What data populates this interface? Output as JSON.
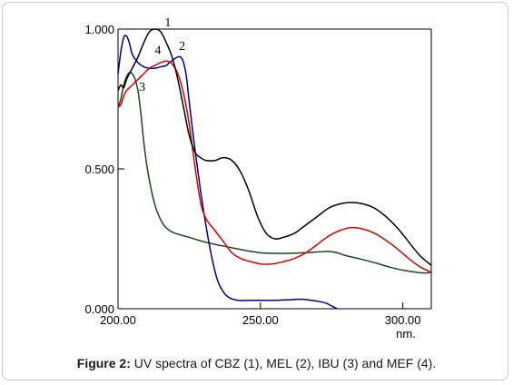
{
  "figure": {
    "label": "Figure 2:",
    "text": " UV spectra of CBZ (1), MEL (2), IBU (3) and MEF (4)."
  },
  "chart_data": {
    "type": "line",
    "title": "",
    "xlabel": "nm.",
    "ylabel": "",
    "xlim": [
      200,
      310
    ],
    "ylim": [
      0,
      1.0
    ],
    "x_ticks": [
      200,
      250,
      300
    ],
    "x_tick_labels": [
      "200.00",
      "250.00",
      "300.00"
    ],
    "y_ticks": [
      0,
      0.5,
      1.0
    ],
    "y_tick_labels": [
      "0.000",
      "0.500",
      "1.000"
    ],
    "grid": false,
    "legend": "none",
    "series": [
      {
        "label": "1",
        "color": "#000000",
        "points": [
          [
            200,
            0.78
          ],
          [
            201,
            0.8
          ],
          [
            202,
            0.79
          ],
          [
            203,
            0.82
          ],
          [
            205,
            0.86
          ],
          [
            207,
            0.9
          ],
          [
            209,
            0.95
          ],
          [
            211,
            0.99
          ],
          [
            213,
            1.0
          ],
          [
            215,
            0.99
          ],
          [
            217,
            0.95
          ],
          [
            219,
            0.9
          ],
          [
            221,
            0.82
          ],
          [
            223,
            0.72
          ],
          [
            225,
            0.62
          ],
          [
            227,
            0.56
          ],
          [
            229,
            0.54
          ],
          [
            231,
            0.53
          ],
          [
            234,
            0.53
          ],
          [
            237,
            0.54
          ],
          [
            240,
            0.53
          ],
          [
            243,
            0.49
          ],
          [
            246,
            0.42
          ],
          [
            249,
            0.33
          ],
          [
            252,
            0.27
          ],
          [
            255,
            0.25
          ],
          [
            258,
            0.255
          ],
          [
            262,
            0.27
          ],
          [
            266,
            0.3
          ],
          [
            270,
            0.33
          ],
          [
            274,
            0.36
          ],
          [
            278,
            0.375
          ],
          [
            282,
            0.38
          ],
          [
            286,
            0.375
          ],
          [
            290,
            0.36
          ],
          [
            294,
            0.33
          ],
          [
            298,
            0.29
          ],
          [
            302,
            0.24
          ],
          [
            306,
            0.19
          ],
          [
            310,
            0.155
          ]
        ]
      },
      {
        "label": "2",
        "color": "#00008b",
        "points": [
          [
            200,
            0.84
          ],
          [
            201,
            0.92
          ],
          [
            202,
            0.97
          ],
          [
            203,
            0.975
          ],
          [
            204,
            0.95
          ],
          [
            205,
            0.91
          ],
          [
            207,
            0.88
          ],
          [
            209,
            0.865
          ],
          [
            211,
            0.86
          ],
          [
            213,
            0.86
          ],
          [
            215,
            0.865
          ],
          [
            217,
            0.87
          ],
          [
            218,
            0.88
          ],
          [
            220,
            0.895
          ],
          [
            221,
            0.9
          ],
          [
            222,
            0.9
          ],
          [
            223,
            0.88
          ],
          [
            224,
            0.83
          ],
          [
            225,
            0.74
          ],
          [
            227,
            0.57
          ],
          [
            229,
            0.42
          ],
          [
            231,
            0.29
          ],
          [
            233,
            0.18
          ],
          [
            235,
            0.1
          ],
          [
            237,
            0.06
          ],
          [
            239,
            0.04
          ],
          [
            242,
            0.03
          ],
          [
            246,
            0.03
          ],
          [
            250,
            0.03
          ],
          [
            255,
            0.03
          ],
          [
            260,
            0.032
          ],
          [
            264,
            0.034
          ],
          [
            268,
            0.03
          ],
          [
            271,
            0.025
          ],
          [
            273,
            0.02
          ],
          [
            275,
            0.01
          ],
          [
            277,
            0.0
          ]
        ]
      },
      {
        "label": "3",
        "color": "#1e4620",
        "points": [
          [
            200,
            0.72
          ],
          [
            201,
            0.75
          ],
          [
            202,
            0.8
          ],
          [
            203,
            0.83
          ],
          [
            204,
            0.845
          ],
          [
            205,
            0.84
          ],
          [
            206,
            0.82
          ],
          [
            207,
            0.78
          ],
          [
            208,
            0.7
          ],
          [
            209,
            0.6
          ],
          [
            210,
            0.52
          ],
          [
            211,
            0.46
          ],
          [
            212,
            0.41
          ],
          [
            213,
            0.37
          ],
          [
            214,
            0.34
          ],
          [
            216,
            0.3
          ],
          [
            218,
            0.28
          ],
          [
            220,
            0.27
          ],
          [
            225,
            0.255
          ],
          [
            230,
            0.24
          ],
          [
            235,
            0.228
          ],
          [
            240,
            0.218
          ],
          [
            245,
            0.208
          ],
          [
            250,
            0.2
          ],
          [
            255,
            0.198
          ],
          [
            260,
            0.198
          ],
          [
            265,
            0.2
          ],
          [
            270,
            0.203
          ],
          [
            274,
            0.205
          ],
          [
            277,
            0.2
          ],
          [
            280,
            0.19
          ],
          [
            285,
            0.178
          ],
          [
            290,
            0.165
          ],
          [
            295,
            0.15
          ],
          [
            300,
            0.138
          ],
          [
            305,
            0.13
          ],
          [
            308,
            0.128
          ],
          [
            310,
            0.13
          ]
        ]
      },
      {
        "label": "4",
        "color": "#dd0000",
        "points": [
          [
            200,
            0.72
          ],
          [
            201,
            0.73
          ],
          [
            202,
            0.76
          ],
          [
            203,
            0.78
          ],
          [
            205,
            0.8
          ],
          [
            207,
            0.82
          ],
          [
            209,
            0.84
          ],
          [
            211,
            0.86
          ],
          [
            213,
            0.87
          ],
          [
            215,
            0.88
          ],
          [
            217,
            0.885
          ],
          [
            219,
            0.875
          ],
          [
            221,
            0.84
          ],
          [
            223,
            0.77
          ],
          [
            225,
            0.66
          ],
          [
            227,
            0.51
          ],
          [
            229,
            0.38
          ],
          [
            231,
            0.32
          ],
          [
            234,
            0.28
          ],
          [
            237,
            0.24
          ],
          [
            240,
            0.2
          ],
          [
            243,
            0.18
          ],
          [
            246,
            0.17
          ],
          [
            250,
            0.16
          ],
          [
            254,
            0.16
          ],
          [
            258,
            0.168
          ],
          [
            262,
            0.18
          ],
          [
            266,
            0.2
          ],
          [
            270,
            0.23
          ],
          [
            274,
            0.26
          ],
          [
            278,
            0.28
          ],
          [
            282,
            0.29
          ],
          [
            286,
            0.285
          ],
          [
            290,
            0.27
          ],
          [
            294,
            0.245
          ],
          [
            298,
            0.215
          ],
          [
            302,
            0.18
          ],
          [
            306,
            0.15
          ],
          [
            310,
            0.13
          ]
        ]
      }
    ],
    "curve_labels": [
      {
        "text": "1",
        "x": 217.5,
        "y": 1.01
      },
      {
        "text": "2",
        "x": 222.5,
        "y": 0.925
      },
      {
        "text": "3",
        "x": 208.5,
        "y": 0.78
      },
      {
        "text": "4",
        "x": 214,
        "y": 0.91
      }
    ]
  }
}
